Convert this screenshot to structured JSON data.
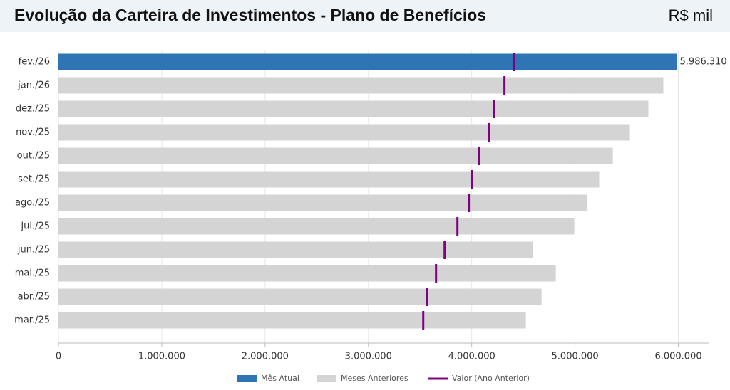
{
  "chart_data": {
    "type": "bar",
    "orientation": "horizontal",
    "title": "Evolução da Carteira de Investimentos - Plano de Benefícios",
    "unit": "R$ mil",
    "categories": [
      "fev./26",
      "jan./26",
      "dez./25",
      "nov./25",
      "out./25",
      "set./25",
      "ago./25",
      "jul./25",
      "jun./25",
      "mai./25",
      "abr./25",
      "mar./25"
    ],
    "series": [
      {
        "name": "Mês Atual",
        "color": "#2e75b6",
        "kind": "bar",
        "values": [
          5986310,
          null,
          null,
          null,
          null,
          null,
          null,
          null,
          null,
          null,
          null,
          null
        ],
        "value_labels": [
          "5.986.310",
          null,
          null,
          null,
          null,
          null,
          null,
          null,
          null,
          null,
          null,
          null
        ]
      },
      {
        "name": "Meses Anteriores",
        "color": "#d4d4d4",
        "kind": "bar",
        "values": [
          null,
          5855000,
          5710000,
          5531000,
          5366000,
          5234000,
          5117000,
          4993000,
          4593000,
          4814000,
          4676000,
          4524000
        ]
      },
      {
        "name": "Valor (Ano Anterior)",
        "color": "#800080",
        "kind": "marker",
        "values": [
          4407000,
          4317000,
          4214000,
          4166000,
          4069000,
          4000000,
          3972000,
          3862000,
          3738000,
          3655000,
          3566000,
          3531000
        ]
      }
    ],
    "xlim": [
      0,
      6300000
    ],
    "xticks": [
      0,
      {
        "value": 1000000,
        "label": "1.000.000"
      },
      {
        "value": 2000000,
        "label": "2.000.000"
      },
      {
        "value": 3000000,
        "label": "3.000.000"
      },
      {
        "value": 4000000,
        "label": "4.000.000"
      },
      {
        "value": 5000000,
        "label": "5.000.000"
      },
      {
        "value": 6000000,
        "label": "6.000.000"
      }
    ],
    "grid": true,
    "legend": "bottom"
  }
}
